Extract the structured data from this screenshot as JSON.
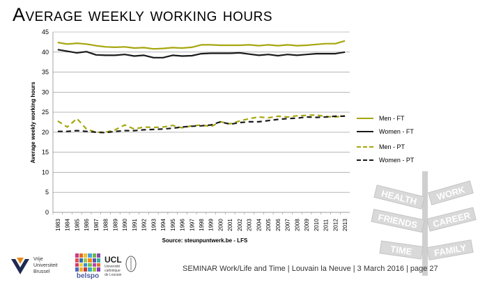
{
  "slide": {
    "title": "Average weekly working hours",
    "footer": "SEMINAR Work/Life and Time  |  Louvain la Neuve  | 3 March 2016  |  page  27"
  },
  "logos": {
    "vub": [
      "Vrije",
      "Universiteit",
      "Brussel"
    ],
    "belspo": "belspo",
    "ucl": "UCL",
    "ucl_sub": [
      "Université",
      "catholique",
      "de Louvain"
    ]
  },
  "signpost_words": [
    "HEALTH",
    "WORK",
    "FRIENDS",
    "CAREER",
    "TIME",
    "FAMILY"
  ],
  "chart_data": {
    "type": "line",
    "title": "Average weekly working hours",
    "xlabel": "Source: steunpuntwerk.be - LFS",
    "ylabel": "Average weekly working hours",
    "ylim": [
      0,
      45
    ],
    "yticks": [
      "0",
      "5",
      "10",
      "15",
      "20",
      "25",
      "30",
      "35",
      "40",
      "45"
    ],
    "grid": "horizontal",
    "legend": "right",
    "x": [
      "1983",
      "1984",
      "1985",
      "1986",
      "1987",
      "1988",
      "1989",
      "1990",
      "1991",
      "1992",
      "1993",
      "1994",
      "1995",
      "1996",
      "1997",
      "1998",
      "1999",
      "2000",
      "2001",
      "2002",
      "2003",
      "2004",
      "2005",
      "2006",
      "2007",
      "2008",
      "2009",
      "2010",
      "2011",
      "2012",
      "2013"
    ],
    "series": [
      {
        "name": "Men - FT",
        "color": "#a6a60f",
        "dash": false,
        "values": [
          42.4,
          42.0,
          42.2,
          42.0,
          41.6,
          41.3,
          41.2,
          41.3,
          41.0,
          41.1,
          40.8,
          40.9,
          41.1,
          41.0,
          41.2,
          41.8,
          41.8,
          41.7,
          41.7,
          41.7,
          41.8,
          41.6,
          41.8,
          41.6,
          41.8,
          41.6,
          41.7,
          41.9,
          42.1,
          42.1,
          42.8
        ]
      },
      {
        "name": "Women - FT",
        "color": "#1a1a1a",
        "dash": false,
        "values": [
          40.6,
          40.2,
          39.8,
          40.1,
          39.3,
          39.2,
          39.2,
          39.4,
          39.0,
          39.2,
          38.6,
          38.6,
          39.2,
          39.0,
          39.1,
          39.6,
          39.7,
          39.7,
          39.7,
          39.8,
          39.5,
          39.2,
          39.4,
          39.1,
          39.4,
          39.2,
          39.4,
          39.6,
          39.6,
          39.6,
          40.0
        ]
      },
      {
        "name": "Men - PT",
        "color": "#a6a60f",
        "dash": true,
        "values": [
          22.8,
          21.3,
          23.4,
          20.8,
          20.0,
          20.0,
          20.6,
          21.8,
          20.8,
          21.3,
          21.2,
          21.3,
          21.7,
          21.1,
          21.6,
          21.8,
          21.4,
          22.6,
          22.1,
          22.8,
          23.4,
          23.8,
          23.6,
          24.0,
          23.8,
          24.1,
          24.2,
          24.3,
          23.9,
          23.8,
          24.1
        ]
      },
      {
        "name": "Women - PT",
        "color": "#1a1a1a",
        "dash": true,
        "values": [
          20.2,
          20.2,
          20.4,
          20.2,
          20.0,
          19.9,
          20.2,
          20.4,
          20.4,
          20.6,
          20.7,
          20.8,
          21.0,
          21.3,
          21.5,
          21.6,
          21.8,
          22.6,
          22.0,
          22.4,
          22.6,
          22.6,
          22.9,
          23.2,
          23.4,
          23.5,
          23.8,
          23.7,
          23.8,
          24.0,
          24.0
        ]
      }
    ]
  }
}
